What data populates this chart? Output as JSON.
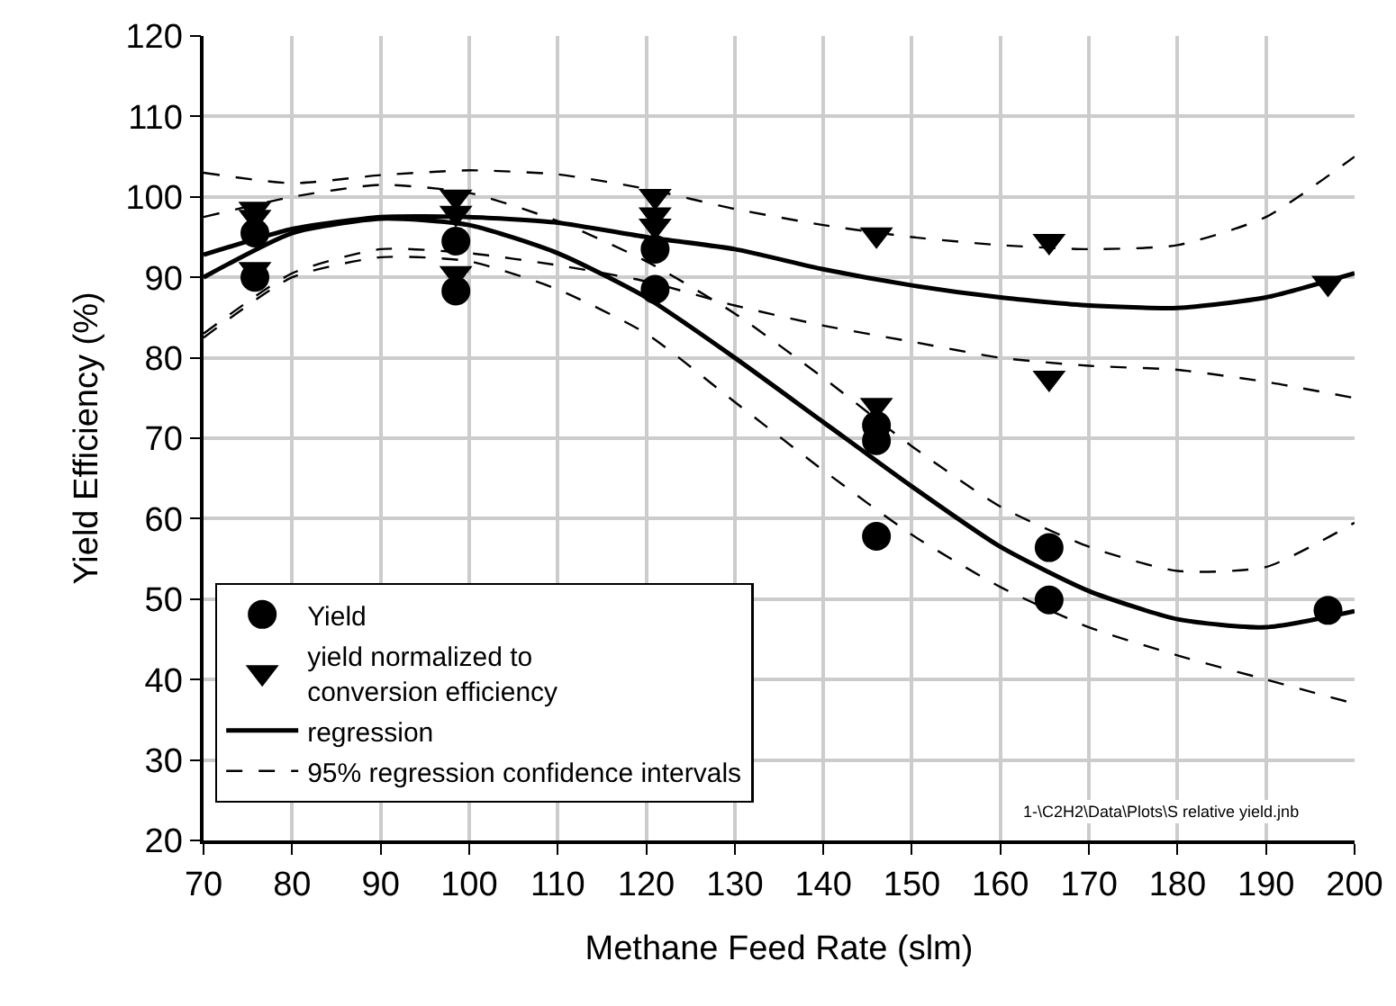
{
  "chart_data": {
    "type": "scatter",
    "xlabel": "Methane Feed Rate (slm)",
    "ylabel": "Yield Efficiency (%)",
    "xlim": [
      70,
      200
    ],
    "xticks": [
      70,
      80,
      90,
      100,
      110,
      120,
      130,
      140,
      150,
      160,
      170,
      180,
      190,
      200
    ],
    "ylim": [
      20,
      120
    ],
    "yticks": [
      20,
      30,
      40,
      50,
      60,
      70,
      80,
      90,
      100,
      110,
      120
    ],
    "grid": true,
    "legend": "bottom left",
    "annotations": [
      "1-\\C2H2\\Data\\Plots\\S relative yield.jnb"
    ],
    "series": [
      {
        "name": "Yield",
        "color": "#000000",
        "marker": "circle",
        "x": [
          75.8,
          75.8,
          98.5,
          98.5,
          121,
          121,
          146,
          146,
          146,
          165.5,
          165.5,
          197
        ],
        "values": [
          95.5,
          90,
          94.5,
          88.3,
          93.5,
          88.5,
          71.6,
          69.7,
          57.8,
          56.4,
          49.9,
          48.6
        ]
      },
      {
        "name": "yield normalized to\nconversion efficiency",
        "color": "#000000",
        "marker": "triangle",
        "x": [
          75.8,
          75.8,
          75.8,
          98.5,
          98.5,
          98.5,
          121,
          121,
          121,
          146,
          146,
          165.5,
          165.5,
          197
        ],
        "values": [
          98.5,
          97.5,
          91,
          100,
          98,
          90.5,
          100.1,
          97.8,
          96.4,
          95.3,
          74.1,
          94.5,
          77.5,
          89.3
        ]
      },
      {
        "type": "line",
        "name": "regression",
        "color": "#000000",
        "line_style": "solid",
        "x": [
          70,
          80,
          90,
          100,
          110,
          120,
          130,
          140,
          150,
          160,
          170,
          180,
          190,
          200
        ],
        "values": [
          92.8,
          96,
          97.5,
          97.5,
          96.8,
          95,
          93.5,
          91,
          89,
          87.5,
          86.5,
          86.2,
          87.5,
          90.5
        ]
      },
      {
        "type": "line",
        "color": "#000000",
        "line_style": "solid",
        "x": [
          70,
          80,
          90,
          100,
          110,
          120,
          130,
          140,
          150,
          160,
          170,
          180,
          190,
          200
        ],
        "values": [
          90,
          95.5,
          97.3,
          96.5,
          93,
          87.5,
          80,
          72,
          64,
          56.5,
          51,
          47.5,
          46.5,
          48.5
        ]
      },
      {
        "type": "line",
        "name": "95% regression confidence intervals",
        "color": "#000000",
        "line_style": "dashed",
        "x": [
          70,
          80,
          90,
          100,
          110,
          120,
          130,
          140,
          150,
          160,
          170,
          180,
          190,
          200
        ],
        "values": [
          103,
          101.7,
          102.7,
          103.3,
          102.8,
          101,
          98.5,
          96.5,
          95,
          94,
          93.5,
          94,
          97.5,
          105
        ]
      },
      {
        "type": "line",
        "color": "#000000",
        "line_style": "dashed",
        "x": [
          70,
          80,
          90,
          100,
          110,
          120,
          130,
          140,
          150,
          160,
          170,
          180,
          190,
          200
        ],
        "values": [
          83,
          90.5,
          93.5,
          93,
          91.5,
          89.5,
          86.5,
          84,
          82,
          80,
          79,
          78.5,
          77,
          75
        ]
      },
      {
        "type": "line",
        "color": "#000000",
        "line_style": "dashed",
        "x": [
          70,
          80,
          90,
          100,
          110,
          120,
          130,
          140,
          150,
          160,
          170,
          180,
          190,
          200
        ],
        "values": [
          97.5,
          100,
          101.5,
          100.5,
          97,
          92,
          85.5,
          77.5,
          69,
          61.5,
          56.5,
          53.5,
          54,
          59.5
        ]
      },
      {
        "type": "line",
        "color": "#000000",
        "line_style": "dashed",
        "x": [
          70,
          80,
          90,
          100,
          110,
          120,
          130,
          140,
          150,
          160,
          170,
          180,
          190,
          200
        ],
        "values": [
          82.5,
          90,
          92.5,
          92,
          88.5,
          83,
          74.5,
          66,
          58,
          51.5,
          46.5,
          43,
          40,
          37
        ]
      }
    ]
  }
}
